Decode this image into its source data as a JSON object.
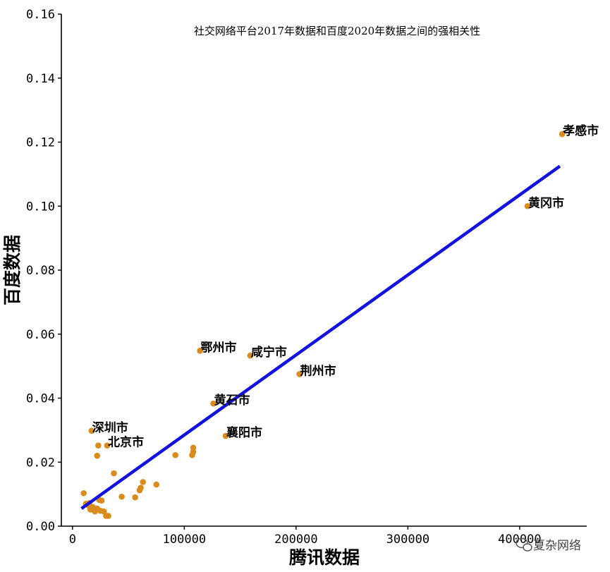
{
  "chart_data": {
    "type": "scatter",
    "title": "社交网络平台2017年数据和百度2020年数据之间的强相关性",
    "xlabel": "腾讯数据",
    "ylabel": "百度数据",
    "xlim": [
      -10000,
      460000
    ],
    "ylim": [
      0,
      0.16
    ],
    "xticks": [
      0,
      100000,
      200000,
      300000,
      400000
    ],
    "xtick_labels": [
      "0",
      "100000",
      "200000",
      "300000",
      "400000"
    ],
    "yticks": [
      0.0,
      0.02,
      0.04,
      0.06,
      0.08,
      0.1,
      0.12,
      0.14,
      0.16
    ],
    "ytick_labels": [
      "0.00",
      "0.02",
      "0.04",
      "0.06",
      "0.08",
      "0.10",
      "0.12",
      "0.14",
      "0.16"
    ],
    "grid": false,
    "point_color": "#d98c1c",
    "line_color": "#1212e0",
    "series": [
      {
        "points": [
          [
            10000,
            0.0103
          ],
          [
            12000,
            0.007
          ],
          [
            14000,
            0.0065
          ],
          [
            15000,
            0.0072
          ],
          [
            16000,
            0.0052
          ],
          [
            18000,
            0.006
          ],
          [
            20000,
            0.0046
          ],
          [
            22000,
            0.0055
          ],
          [
            25000,
            0.0048
          ],
          [
            28000,
            0.0046
          ],
          [
            30000,
            0.0032
          ],
          [
            32000,
            0.0032
          ],
          [
            24000,
            0.0082
          ],
          [
            26000,
            0.008
          ],
          [
            22000,
            0.022
          ],
          [
            23000,
            0.0252
          ],
          [
            37000,
            0.0165
          ],
          [
            44000,
            0.0092
          ],
          [
            56000,
            0.009
          ],
          [
            60000,
            0.0112
          ],
          [
            61000,
            0.012
          ],
          [
            63000,
            0.0138
          ],
          [
            75000,
            0.013
          ],
          [
            92000,
            0.0222
          ],
          [
            107000,
            0.0222
          ],
          [
            108000,
            0.0232
          ],
          [
            108000,
            0.0245
          ],
          [
            17000,
            0.0298
          ],
          [
            31000,
            0.0252
          ],
          [
            114000,
            0.0548
          ],
          [
            159000,
            0.0533
          ],
          [
            203000,
            0.0475
          ],
          [
            126000,
            0.0383
          ],
          [
            137000,
            0.0282
          ],
          [
            407000,
            0.1
          ],
          [
            438000,
            0.1225
          ]
        ]
      }
    ],
    "regression_line": {
      "x": [
        8000,
        436000
      ],
      "y": [
        0.0055,
        0.1125
      ]
    },
    "annotations": [
      {
        "text": "孝感市",
        "x": 438000,
        "y": 0.1225
      },
      {
        "text": "黄冈市",
        "x": 407000,
        "y": 0.1
      },
      {
        "text": "鄂州市",
        "x": 114000,
        "y": 0.0548
      },
      {
        "text": "咸宁市",
        "x": 159000,
        "y": 0.0533
      },
      {
        "text": "荆州市",
        "x": 203000,
        "y": 0.0475
      },
      {
        "text": "黄石市",
        "x": 126000,
        "y": 0.0383
      },
      {
        "text": "襄阳市",
        "x": 137000,
        "y": 0.0282
      },
      {
        "text": "深圳市",
        "x": 17000,
        "y": 0.0298
      },
      {
        "text": "北京市",
        "x": 31000,
        "y": 0.0252
      }
    ]
  },
  "watermark": {
    "text": "夏杂网络",
    "icon": "wechat-bubble-icon"
  }
}
